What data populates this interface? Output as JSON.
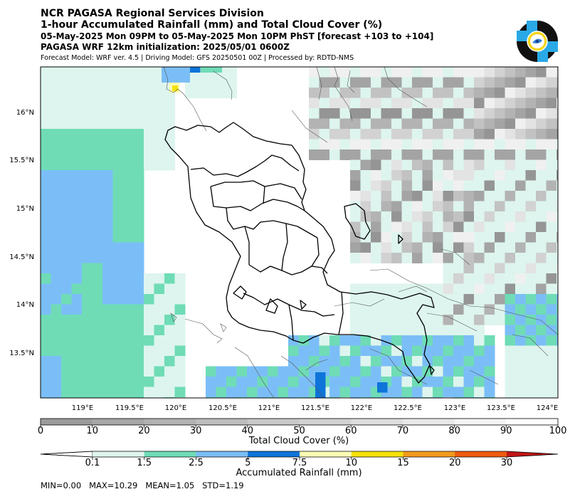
{
  "header": {
    "line1": "NCR PAGASA Regional Services Division",
    "line2": "1-hour Accumulated Rainfall (mm) and Total Cloud Cover (%)",
    "line3": "05-May-2025 Mon 09PM to 05-May-2025 Mon 10PM PhST [forecast +103 to +104]",
    "line4": "PAGASA WRF 12km initialization: 2025/05/01 0600Z",
    "line5": "Forecast Model: WRF ver. 4.5 | Driving Model: GFS 20250501 00Z | Processed by: RDTD-NMS"
  },
  "map": {
    "lon_labels": [
      "119°E",
      "119.5°E",
      "120°E",
      "120.5°E",
      "121°E",
      "121.5°E",
      "122°E",
      "122.5°E",
      "123°E",
      "123.5°E",
      "124°E"
    ],
    "lat_labels": [
      "16°N",
      "15.5°N",
      "15°N",
      "14.5°N",
      "14°N",
      "13.5°N"
    ],
    "colors": {
      "rain_0_1": "#ddf5ee",
      "rain_1_5": "#6fdcb6",
      "rain_2_5": "#7bbef7",
      "rain_5": "#0e74d9",
      "rain_7_5": "#fdfdb3",
      "rain_10": "#f4e20a",
      "rain_15": "#f39a1c",
      "rain_20": "#ee5a0f",
      "rain_30": "#c01616"
    }
  },
  "cloud_bar": {
    "ticks": [
      "0",
      "10",
      "20",
      "30",
      "40",
      "50",
      "60",
      "70",
      "80",
      "90",
      "100"
    ],
    "label": "Total Cloud Cover (%)"
  },
  "rain_bar": {
    "ticks": [
      "0.1",
      "1.5",
      "2.5",
      "5",
      "7.5",
      "10",
      "15",
      "20",
      "30"
    ],
    "label": "Accumulated Rainfall (mm)"
  },
  "stats": {
    "text": "MIN=0.00   MAX=10.29   MEAN=1.05   STD=1.19"
  }
}
